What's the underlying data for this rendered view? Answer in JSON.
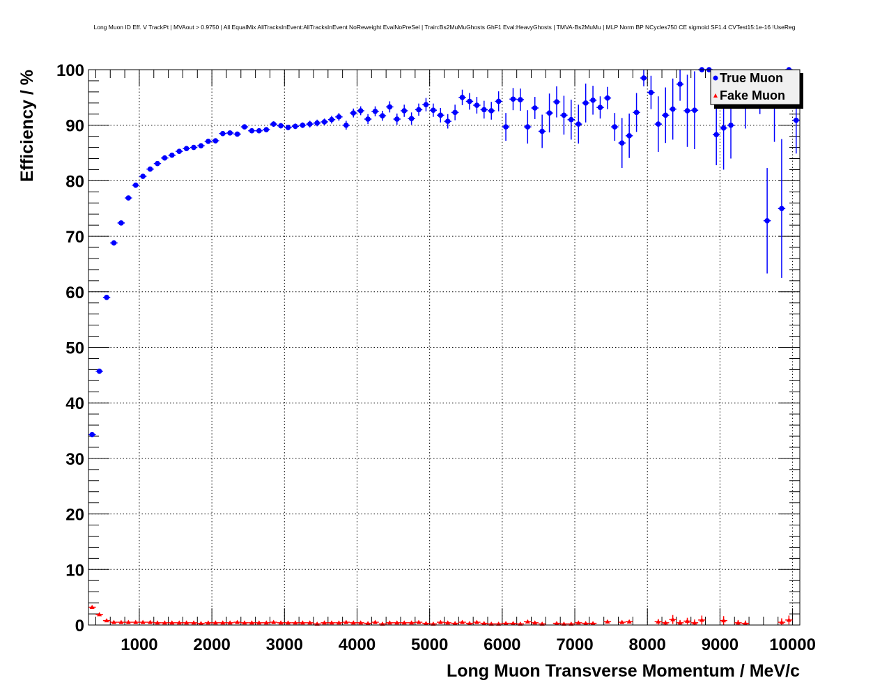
{
  "chart_data": {
    "type": "scatter",
    "title": "Long Muon ID Eff. V TrackPt | MVAout > 0.9750 | All EqualMix AllTracksInEvent:AllTracksInEvent NoReweight EvalNoPreSel | Train:Bs2MuMuGhosts GhF1 Eval:HeavyGhosts | TMVA-Bs2MuMu | MLP Norm BP NCycles750 CE sigmoid SF1.4 CVTest15:1e-16 !UseReg",
    "xlabel": "Long Muon Transverse Momentum / MeV/c",
    "ylabel": "Efficiency / %",
    "xlim": [
      300,
      10100
    ],
    "ylim": [
      0,
      100
    ],
    "xticks": [
      "1000",
      "2000",
      "3000",
      "4000",
      "5000",
      "6000",
      "7000",
      "8000",
      "9000",
      "10000"
    ],
    "yticks": [
      "0",
      "10",
      "20",
      "30",
      "40",
      "50",
      "60",
      "70",
      "80",
      "90",
      "100"
    ],
    "grid": true,
    "legend_position": "top-right",
    "bin_start": 350,
    "bin_width": 100,
    "series": [
      {
        "name": "True Muon",
        "color": "#0000ff",
        "marker": "circle",
        "values": [
          34.3,
          45.7,
          59.0,
          68.8,
          72.4,
          76.9,
          79.2,
          80.8,
          82.1,
          83.1,
          84.1,
          84.6,
          85.3,
          85.8,
          86.0,
          86.3,
          87.1,
          87.2,
          88.5,
          88.6,
          88.4,
          89.7,
          89.0,
          89.0,
          89.2,
          90.2,
          89.9,
          89.6,
          89.8,
          90.0,
          90.2,
          90.4,
          90.6,
          91.0,
          91.5,
          90.0,
          92.2,
          92.6,
          91.1,
          92.5,
          91.7,
          93.3,
          91.1,
          92.6,
          91.2,
          92.8,
          93.7,
          92.7,
          91.8,
          90.7,
          92.3,
          95.0,
          94.3,
          93.6,
          92.8,
          92.6,
          94.3,
          89.7,
          94.7,
          94.6,
          89.7,
          93.1,
          88.9,
          92.2,
          94.2,
          91.8,
          91.0,
          90.2,
          94.0,
          94.5,
          93.2,
          94.9,
          89.7,
          86.8,
          88.1,
          92.3,
          98.5,
          95.9,
          90.2,
          91.8,
          92.9,
          97.4,
          92.6,
          92.7,
          100,
          100,
          88.3,
          89.5,
          90.0,
          96.0,
          93.4,
          96.5,
          95.0,
          72.8,
          94.0,
          75.0,
          100,
          90.9
        ],
        "errors": [
          0.3,
          0.3,
          0.4,
          0.4,
          0.3,
          0.3,
          0.3,
          0.3,
          0.3,
          0.3,
          0.3,
          0.3,
          0.3,
          0.3,
          0.3,
          0.3,
          0.3,
          0.3,
          0.4,
          0.4,
          0.4,
          0.4,
          0.4,
          0.4,
          0.4,
          0.5,
          0.5,
          0.5,
          0.5,
          0.5,
          0.6,
          0.6,
          0.6,
          0.7,
          0.7,
          0.8,
          0.8,
          0.8,
          0.9,
          0.9,
          0.9,
          1.0,
          1.0,
          1.1,
          1.1,
          1.1,
          1.2,
          1.2,
          1.3,
          1.3,
          1.4,
          1.4,
          1.5,
          1.5,
          1.6,
          1.6,
          1.8,
          2.5,
          2.0,
          2.0,
          3.0,
          2.0,
          3.0,
          3.5,
          2.8,
          3.5,
          3.6,
          3.5,
          3.5,
          2.6,
          2.0,
          2.0,
          2.5,
          4.5,
          4.0,
          3.5,
          1.5,
          3.0,
          5.0,
          5.0,
          5.5,
          3.0,
          6.5,
          7.0,
          0,
          0,
          5.5,
          7.5,
          6.0,
          3.0,
          4.0,
          2.0,
          3.0,
          9.5,
          7.0,
          12.5,
          0,
          6.0
        ]
      },
      {
        "name": "Fake Muon",
        "color": "#ff0000",
        "marker": "triangle",
        "values": [
          3.2,
          1.9,
          0.8,
          0.5,
          0.5,
          0.5,
          0.5,
          0.5,
          0.5,
          0.4,
          0.4,
          0.4,
          0.4,
          0.4,
          0.4,
          0.3,
          0.4,
          0.4,
          0.4,
          0.4,
          0.5,
          0.4,
          0.4,
          0.4,
          0.4,
          0.5,
          0.4,
          0.4,
          0.4,
          0.4,
          0.4,
          0.2,
          0.4,
          0.4,
          0.4,
          0.5,
          0.4,
          0.4,
          0.3,
          0.5,
          0.2,
          0.4,
          0.4,
          0.4,
          0.4,
          0.5,
          0.3,
          0.2,
          0.5,
          0.4,
          0.3,
          0.5,
          0.3,
          0.5,
          0.3,
          0.2,
          0.2,
          0.3,
          0.3,
          0.2,
          0.6,
          0.4,
          0.2,
          null,
          0.3,
          0.2,
          0.2,
          0.4,
          0.3,
          0.3,
          null,
          0.6,
          null,
          0.5,
          0.6,
          null,
          null,
          null,
          0.6,
          0.4,
          1.0,
          0.4,
          0.7,
          0.4,
          0.9,
          null,
          null,
          0.8,
          null,
          0.4,
          0.3,
          null,
          null,
          null,
          null,
          0.5,
          0.9,
          null
        ],
        "errors": [
          0.3,
          0.2,
          0.15,
          0.1,
          0.1,
          0.1,
          0.1,
          0.1,
          0.1,
          0.1,
          0.1,
          0.1,
          0.1,
          0.1,
          0.1,
          0.1,
          0.1,
          0.1,
          0.1,
          0.1,
          0.1,
          0.1,
          0.1,
          0.1,
          0.1,
          0.1,
          0.1,
          0.1,
          0.1,
          0.1,
          0.1,
          0.1,
          0.1,
          0.1,
          0.1,
          0.1,
          0.1,
          0.1,
          0.1,
          0.1,
          0.1,
          0.1,
          0.1,
          0.1,
          0.1,
          0.15,
          0.15,
          0.15,
          0.15,
          0.15,
          0.15,
          0.15,
          0.15,
          0.15,
          0.15,
          0.15,
          0.15,
          0.15,
          0.15,
          0.15,
          0.2,
          0.2,
          0.2,
          0,
          0.2,
          0.2,
          0.2,
          0.2,
          0.2,
          0.2,
          0,
          0.3,
          0,
          0.3,
          0.3,
          0,
          0,
          0,
          0.5,
          0.4,
          0.8,
          0.5,
          0.6,
          0.6,
          0.8,
          0,
          0,
          0.8,
          0,
          0.5,
          0.5,
          0,
          0,
          0,
          0,
          0.7,
          0.8,
          0
        ]
      }
    ]
  }
}
